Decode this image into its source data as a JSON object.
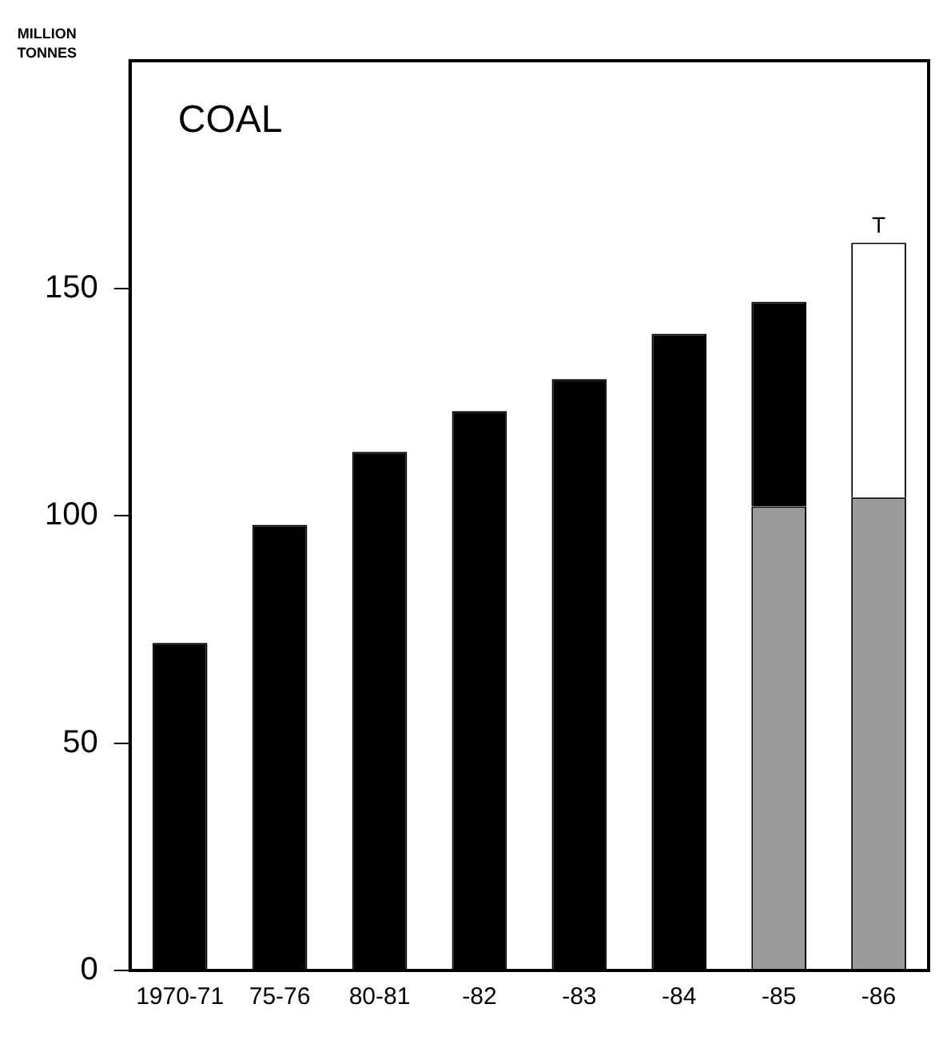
{
  "chart_data": {
    "type": "bar",
    "title": "COAL",
    "ylabel": "MILLION TONNES",
    "categories": [
      "1970-71",
      "75-76",
      "80-81",
      "-82",
      "-83",
      "-84",
      "-85",
      "-86"
    ],
    "stacked": true,
    "series": [
      {
        "color": "#9a9a9a",
        "values": [
          null,
          null,
          null,
          null,
          null,
          null,
          102,
          104
        ]
      },
      {
        "color": "#000000",
        "values": [
          72,
          98,
          114,
          123,
          130,
          140,
          45,
          null
        ]
      },
      {
        "color": "#ffffff",
        "values": [
          null,
          null,
          null,
          null,
          null,
          null,
          null,
          56
        ]
      }
    ],
    "ylim": [
      0,
      200
    ],
    "yticks": [
      0,
      50,
      100,
      150
    ],
    "grid": false,
    "legend": false,
    "annotations": [
      {
        "text": "T",
        "x": "-86",
        "y": 160
      }
    ]
  }
}
